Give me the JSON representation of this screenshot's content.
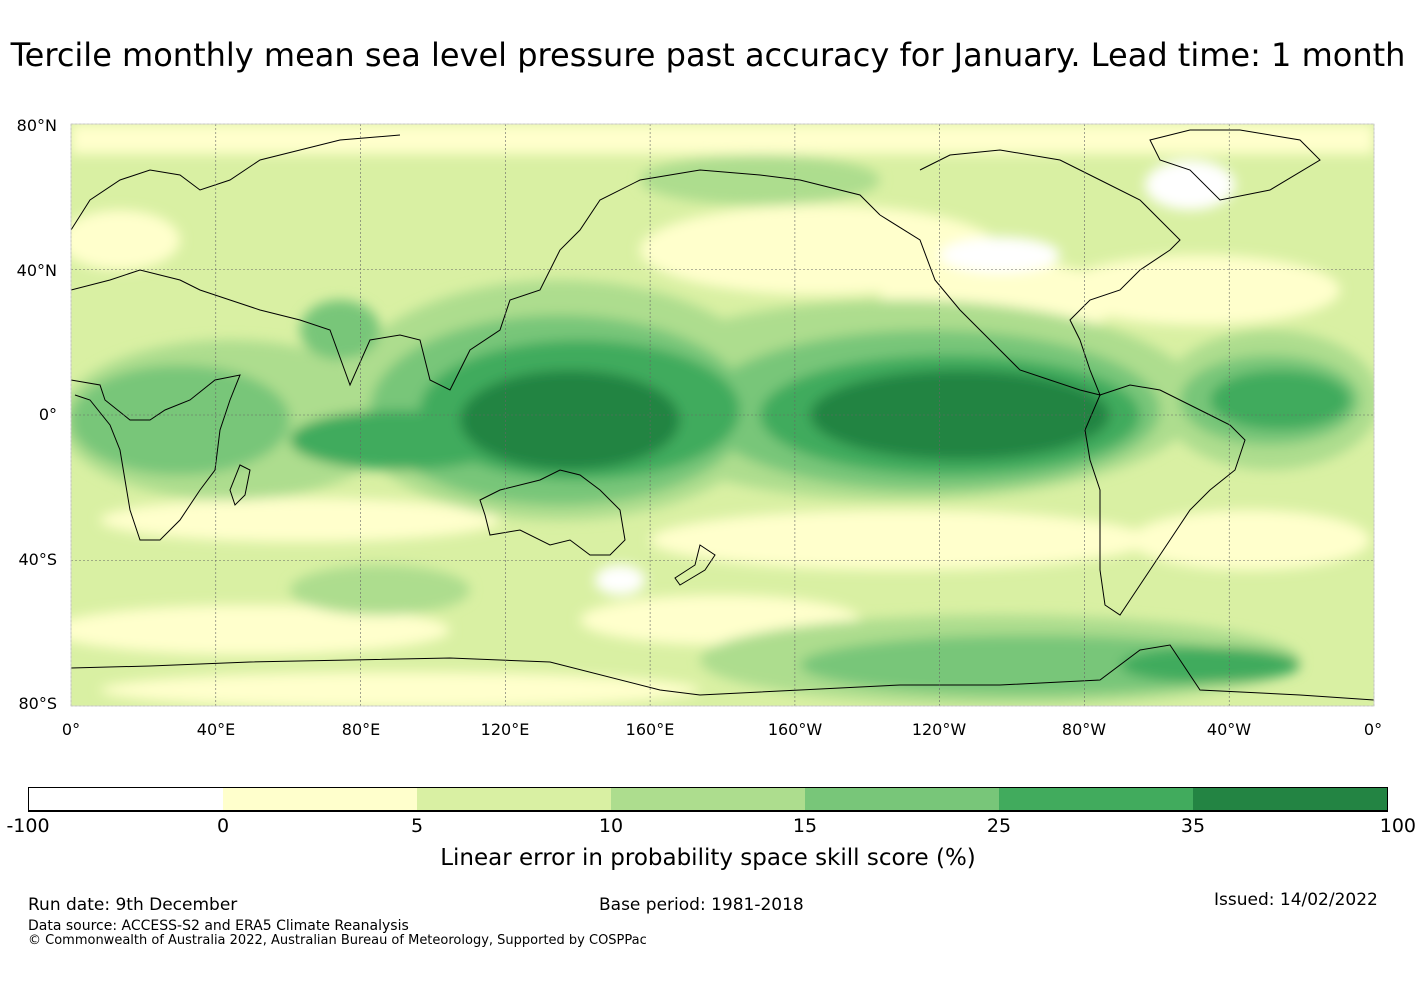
{
  "title": "Tercile monthly mean sea level pressure past accuracy for January. Lead time: 1 month",
  "map": {
    "lat_labels": [
      "80°N",
      "40°N",
      "0°",
      "40°S",
      "80°S"
    ],
    "lon_labels": [
      "0°",
      "40°E",
      "80°E",
      "120°E",
      "160°E",
      "160°W",
      "120°W",
      "80°W",
      "40°W",
      "0°"
    ],
    "lat_values": [
      80,
      40,
      0,
      -40,
      -80
    ],
    "lon_values": [
      0,
      40,
      80,
      120,
      160,
      200,
      240,
      280,
      320,
      360
    ],
    "lon_range": [
      0,
      360
    ],
    "lat_range": [
      -80,
      80
    ]
  },
  "colorbar": {
    "ticks": [
      "-100",
      "0",
      "5",
      "10",
      "15",
      "25",
      "35",
      "100"
    ],
    "colors": [
      "#ffffff",
      "#ffffcc",
      "#d9f0a3",
      "#addd8e",
      "#78c679",
      "#41ab5d",
      "#238443"
    ],
    "label": "Linear error in probability space skill score (%)"
  },
  "footer": {
    "run_date": "Run date: 9th December",
    "base_period": "Base period: 1981-2018",
    "issued": "Issued: 14/02/2022",
    "data_source": "Data source: ACCESS-S2 and ERA5 Climate Reanalysis",
    "copyright": "© Commonwealth of Australia 2022, Australian Bureau of Meteorology, Supported by COSPPac"
  },
  "colors": {
    "grid": "#666666",
    "coast": "#000000"
  }
}
